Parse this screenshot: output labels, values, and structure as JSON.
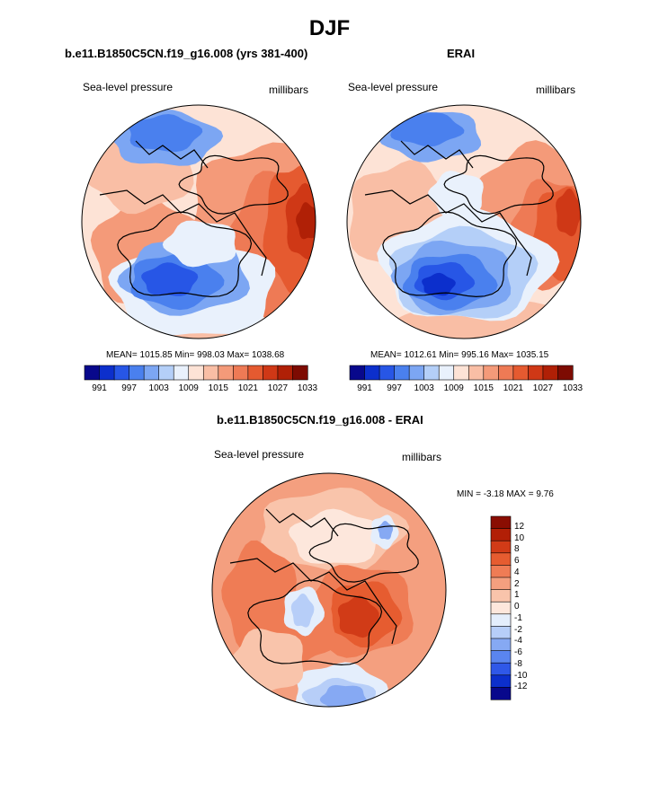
{
  "title": "DJF",
  "palette_12": [
    "#08088c",
    "#0c2fcc",
    "#2756e6",
    "#4a80ee",
    "#7ca6f3",
    "#b4cff8",
    "#e9f1fc",
    "#fde3d6",
    "#f9bea5",
    "#f49a79",
    "#ee7a55",
    "#e55a30",
    "#cf3816",
    "#b02006",
    "#7d0b02"
  ],
  "diff_palette": [
    "#08088c",
    "#0c2fcc",
    "#2f58e8",
    "#5a85ef",
    "#86a9f3",
    "#b7cef8",
    "#e4eefc",
    "#fde7dc",
    "#f9c4ab",
    "#f49f7f",
    "#ef7c55",
    "#e65c30",
    "#d13b17",
    "#b21f06",
    "#8a0d02"
  ],
  "panels": {
    "model": {
      "title": "b.e11.B1850C5CN.f19_g16.008 (yrs 381-400)",
      "left_label": "Sea-level pressure",
      "right_label": "millibars",
      "stats": "MEAN= 1015.85  Min= 998.03  Max= 1038.68",
      "colorbar_ticks": [
        "991",
        "997",
        "1003",
        "1009",
        "1015",
        "1021",
        "1027",
        "1033"
      ]
    },
    "obs": {
      "title": "ERAI",
      "left_label": "Sea-level pressure",
      "right_label": "millibars",
      "stats": "MEAN= 1012.61  Min= 995.16  Max= 1035.15",
      "colorbar_ticks": [
        "991",
        "997",
        "1003",
        "1009",
        "1015",
        "1021",
        "1027",
        "1033"
      ]
    },
    "diff": {
      "title": "b.e11.B1850C5CN.f19_g16.008 - ERAI",
      "left_label": "Sea-level pressure",
      "right_label": "millibars",
      "stats": "MIN =  -3.18 MAX =   9.76",
      "colorbar_ticks": [
        "12",
        "10",
        "8",
        "6",
        "4",
        "2",
        "1",
        "0",
        "-1",
        "-2",
        "-4",
        "-6",
        "-8",
        "-10",
        "-12"
      ]
    }
  }
}
